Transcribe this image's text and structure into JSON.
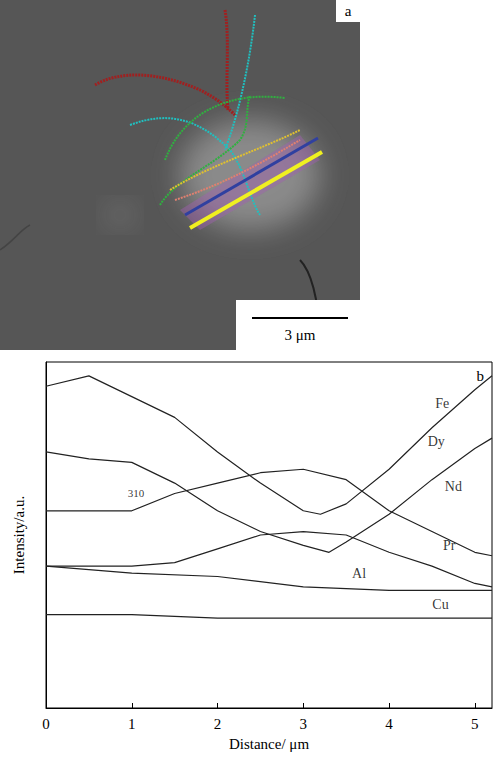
{
  "image_panel": {
    "label": "a",
    "scale_bar": "3 μm"
  },
  "chart_data": {
    "type": "line",
    "panel_label": "b",
    "x_label": "Distance/ μm",
    "y_label": "Intensity/a.u.",
    "xlim": [
      0,
      5.2
    ],
    "xticks": [
      0,
      1,
      2,
      3,
      4,
      5
    ],
    "ylim": [
      0,
      100
    ],
    "tick_labels": "x",
    "grid": false,
    "color": "#222222",
    "line_style": "solid",
    "series": [
      {
        "name": "Fe",
        "x": [
          0,
          0.5,
          1.0,
          1.5,
          2.0,
          2.5,
          3.0,
          3.2,
          3.5,
          4.0,
          4.5,
          5.0,
          5.2
        ],
        "values": [
          93,
          96,
          90,
          84,
          74,
          65,
          57,
          56,
          59,
          69,
          81,
          92,
          96
        ]
      },
      {
        "name": "Dy",
        "x": [
          0,
          0.5,
          1.0,
          1.5,
          2.0,
          2.5,
          3.0,
          3.3,
          3.5,
          4.0,
          4.5,
          5.0,
          5.2
        ],
        "values": [
          74,
          72,
          71,
          65,
          57,
          51,
          47,
          45,
          48,
          56,
          66,
          75,
          78
        ]
      },
      {
        "name": "Nd",
        "x": [
          0,
          0.5,
          1.0,
          1.5,
          2.0,
          2.5,
          3.0,
          3.5,
          4.0,
          4.5,
          5.0,
          5.2
        ],
        "values": [
          57,
          57,
          57,
          62,
          65,
          68,
          69,
          66,
          57,
          51,
          45,
          44
        ]
      },
      {
        "name": "Pr",
        "x": [
          0,
          0.5,
          1.0,
          1.5,
          2.0,
          2.5,
          3.0,
          3.5,
          4.0,
          4.5,
          5.0,
          5.2
        ],
        "values": [
          41,
          41,
          41,
          42,
          46,
          50,
          51,
          50,
          45,
          41,
          36,
          35
        ]
      },
      {
        "name": "Al",
        "x": [
          0,
          1.0,
          2.0,
          3.0,
          4.0,
          5.0,
          5.2
        ],
        "values": [
          41,
          39,
          38,
          35,
          34,
          34,
          34
        ]
      },
      {
        "name": "Cu",
        "x": [
          0,
          1.0,
          2.0,
          3.0,
          4.0,
          5.0,
          5.2
        ],
        "values": [
          27,
          27,
          26,
          26,
          26,
          26,
          26
        ]
      }
    ],
    "annotations": [
      {
        "text": "Fe",
        "x": 4.62,
        "y": 88
      },
      {
        "text": "Dy",
        "x": 4.55,
        "y": 77
      },
      {
        "text": "Nd",
        "x": 4.75,
        "y": 64
      },
      {
        "text": "Pr",
        "x": 4.7,
        "y": 47
      },
      {
        "text": "Al",
        "x": 3.65,
        "y": 39
      },
      {
        "text": "Cu",
        "x": 4.6,
        "y": 30
      },
      {
        "text": "310",
        "x": 1.05,
        "y": 62
      }
    ]
  }
}
